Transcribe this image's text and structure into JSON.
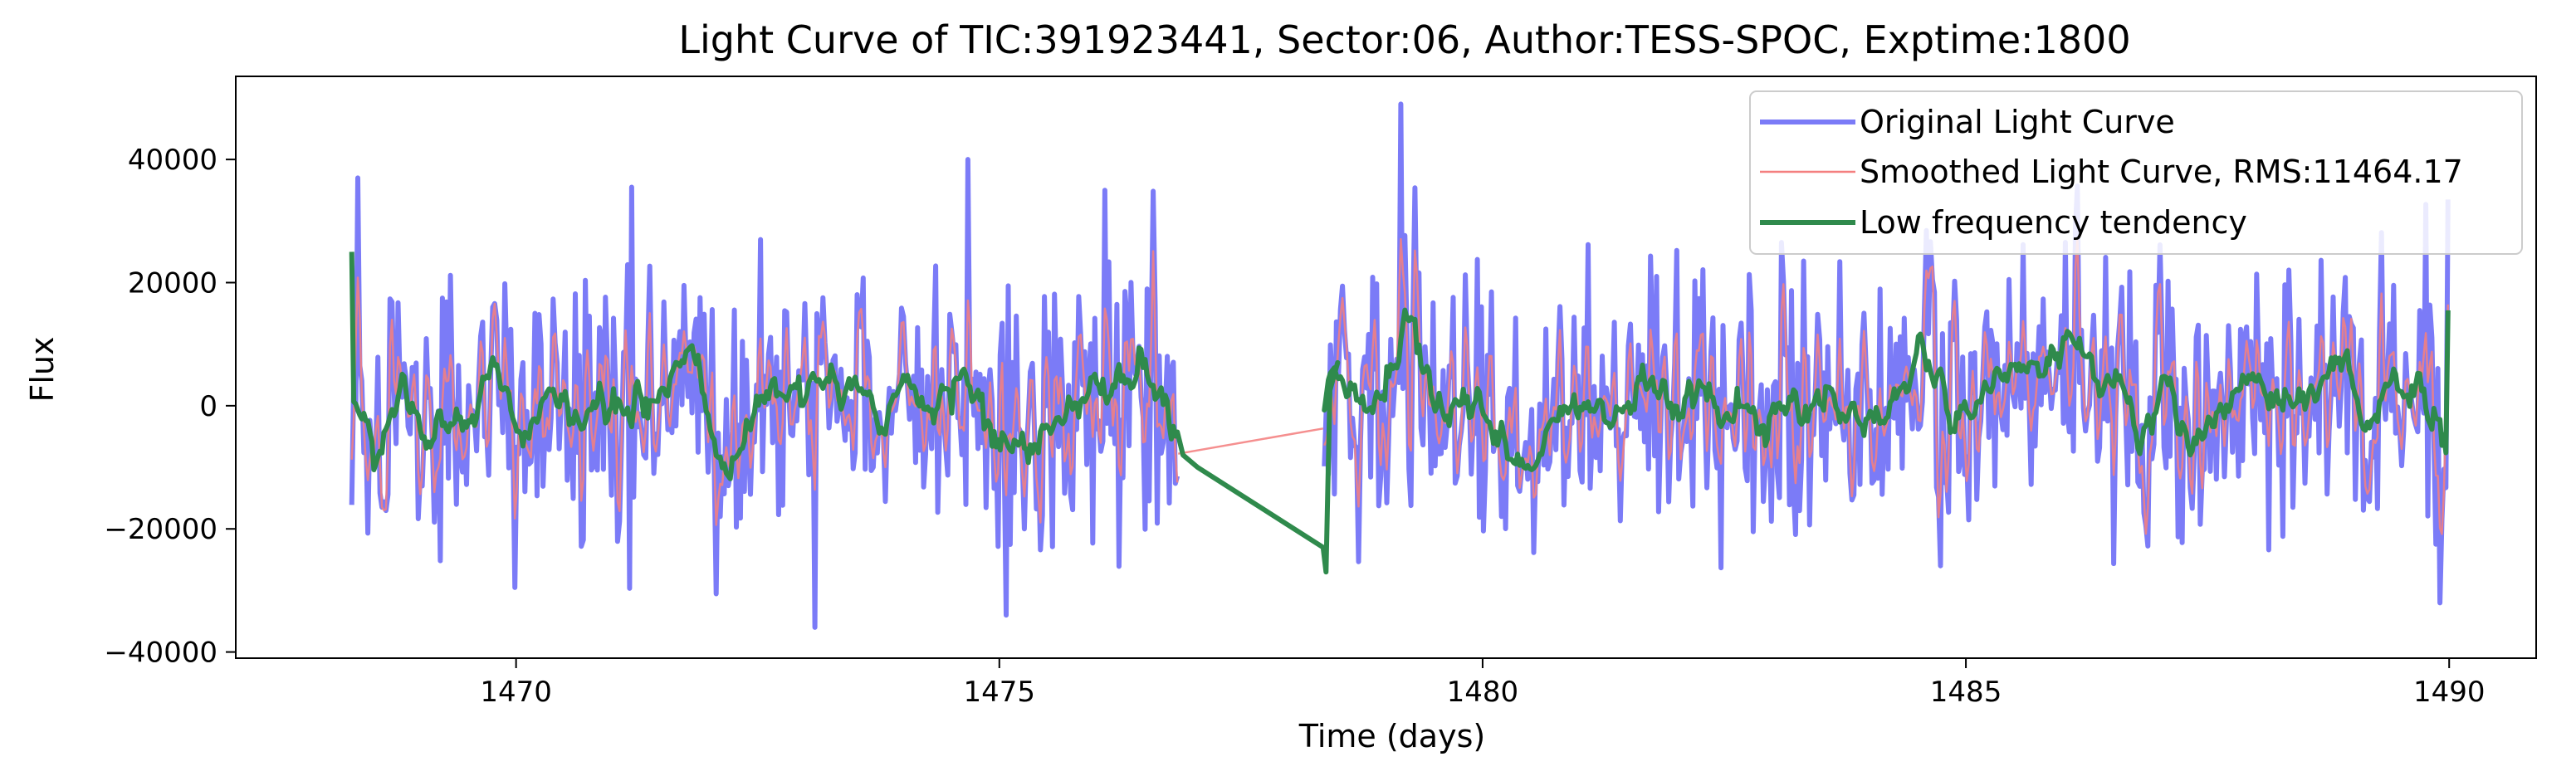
{
  "chart_data": {
    "type": "line",
    "title": "Light Curve of TIC:391923441, Sector:06, Author:TESS-SPOC, Exptime:1800",
    "xlabel": "Time (days)",
    "ylabel": "Flux",
    "xlim": [
      1467.1,
      1490.9
    ],
    "ylim": [
      -41000,
      53500
    ],
    "x_ticks": [
      1470,
      1475,
      1480,
      1485,
      1490
    ],
    "x_tick_labels": [
      "1470",
      "1475",
      "1480",
      "1485",
      "1490"
    ],
    "y_ticks": [
      40000,
      20000,
      0,
      -20000,
      -40000
    ],
    "y_tick_labels": [
      "40000",
      "20000",
      "0",
      "−20000",
      "−40000"
    ],
    "grid": false,
    "legend_position": "top-right",
    "gap": [
      1476.85,
      1478.35
    ],
    "series": [
      {
        "name": "Original Light Curve",
        "color": "#7b7bf7",
        "x_range": [
          1468.3,
          1490.0
        ],
        "samples_per_day": 48,
        "amplitude_std": 11500,
        "max": 49000,
        "max_at": 1479.15,
        "min": -36000,
        "min_at": 1473.1
      },
      {
        "name": "Smoothed Light Curve, RMS:11464.17",
        "color": "#f47f7f",
        "x_range": [
          1468.3,
          1490.0
        ],
        "rms": 11464.17,
        "gap_segment": [
          [
            1476.85,
            -7800
          ],
          [
            1478.35,
            -3700
          ]
        ]
      },
      {
        "name": "Low frequency tendency",
        "color": "#2f8a4c",
        "x_range": [
          1468.3,
          1490.0
        ],
        "start_value": 25000,
        "end_value": 15500,
        "gap_points": [
          [
            1476.9,
            -8000
          ],
          [
            1477.05,
            -10000
          ],
          [
            1478.35,
            -23000
          ],
          [
            1478.38,
            -27000
          ],
          [
            1478.42,
            2500
          ],
          [
            1478.5,
            7000
          ]
        ]
      }
    ]
  }
}
